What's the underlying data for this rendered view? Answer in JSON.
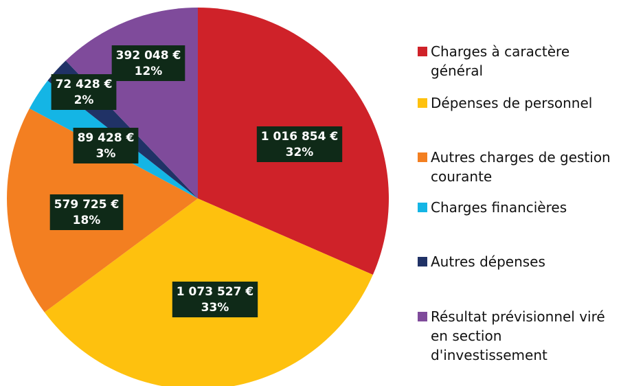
{
  "chart_data": {
    "type": "pie",
    "categories": [
      "Charges à caractère général",
      "Dépenses de personnel",
      "Autres charges de gestion courante",
      "Charges financières",
      "Autres dépenses",
      "Résultat prévisionnel viré en section d'investissement"
    ],
    "values": [
      1016854,
      1073527,
      579725,
      89428,
      72428,
      392048
    ],
    "value_labels": [
      "1 016 854  €",
      "1 073 527  €",
      "579 725  €",
      "89 428  €",
      "72 428  €",
      "392 048  €"
    ],
    "percents": [
      32,
      33,
      18,
      3,
      2,
      12
    ],
    "percent_labels": [
      "32%",
      "33%",
      "18%",
      "3%",
      "2%",
      "12%"
    ],
    "colors": [
      "#cf2229",
      "#fec10e",
      "#f37f21",
      "#14b5e5",
      "#203266",
      "#7f4b9b"
    ],
    "legend": "right"
  }
}
